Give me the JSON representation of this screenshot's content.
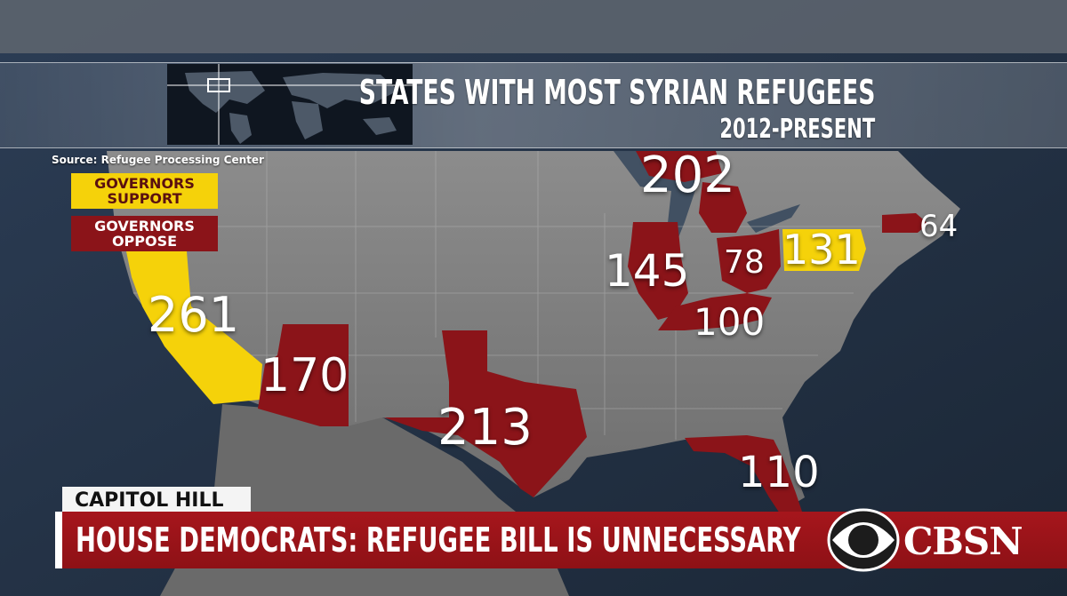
{
  "title": {
    "line1": "STATES WITH MOST SYRIAN REFUGEES",
    "line2": "2012-PRESENT"
  },
  "source": "Source: Refugee Processing Center",
  "legend": {
    "support": {
      "label": "GOVERNORS SUPPORT",
      "color": "#f5d20a"
    },
    "oppose": {
      "label": "GOVERNORS OPPOSE",
      "color": "#8b1419"
    }
  },
  "states": [
    {
      "name": "California",
      "count": 261,
      "stance": "support"
    },
    {
      "name": "Arizona",
      "count": 170,
      "stance": "oppose"
    },
    {
      "name": "Texas",
      "count": 213,
      "stance": "oppose"
    },
    {
      "name": "Illinois",
      "count": 145,
      "stance": "oppose"
    },
    {
      "name": "Michigan",
      "count": 202,
      "stance": "oppose"
    },
    {
      "name": "Ohio",
      "count": 78,
      "stance": "oppose"
    },
    {
      "name": "Kentucky",
      "count": 100,
      "stance": "oppose"
    },
    {
      "name": "Pennsylvania",
      "count": 131,
      "stance": "support"
    },
    {
      "name": "Massachusetts",
      "count": 64,
      "stance": "oppose"
    },
    {
      "name": "Florida",
      "count": 110,
      "stance": "oppose"
    }
  ],
  "lower_third": {
    "location": "CAPITOL HILL",
    "headline": "HOUSE DEMOCRATS: REFUGEE BILL IS UNNECESSARY",
    "network": "CBSN"
  },
  "icons": {
    "network_logo": "cbs-eye-icon"
  }
}
